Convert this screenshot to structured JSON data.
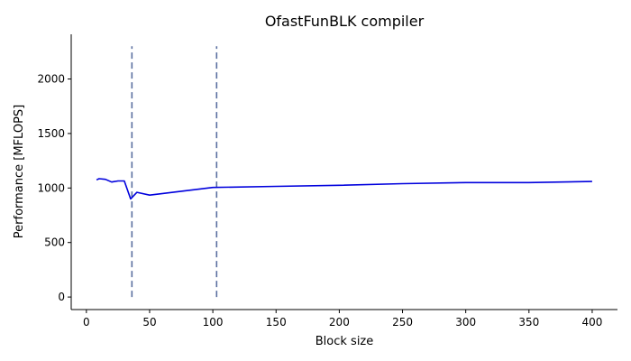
{
  "chart_data": {
    "type": "line",
    "title": "OfastFunBLK compiler",
    "xlabel": "Block size",
    "ylabel": "Performance [MFLOPS]",
    "xlim": [
      -12,
      420
    ],
    "ylim": [
      -115,
      2410
    ],
    "xticks": [
      0,
      50,
      100,
      150,
      200,
      250,
      300,
      350,
      400
    ],
    "yticks": [
      0,
      500,
      1000,
      1500,
      2000
    ],
    "grid": false,
    "series": [
      {
        "color": "#0000dd",
        "x": [
          8,
          10,
          15,
          20,
          25,
          30,
          35,
          40,
          50,
          100,
          150,
          200,
          250,
          300,
          350,
          400
        ],
        "y": [
          1075,
          1085,
          1080,
          1055,
          1065,
          1065,
          900,
          960,
          935,
          1005,
          1015,
          1025,
          1040,
          1050,
          1050,
          1060
        ]
      }
    ],
    "vlines": {
      "color": "#5a6fa0",
      "x": [
        36,
        103
      ],
      "ymin": 0,
      "ymax": 2300
    }
  }
}
